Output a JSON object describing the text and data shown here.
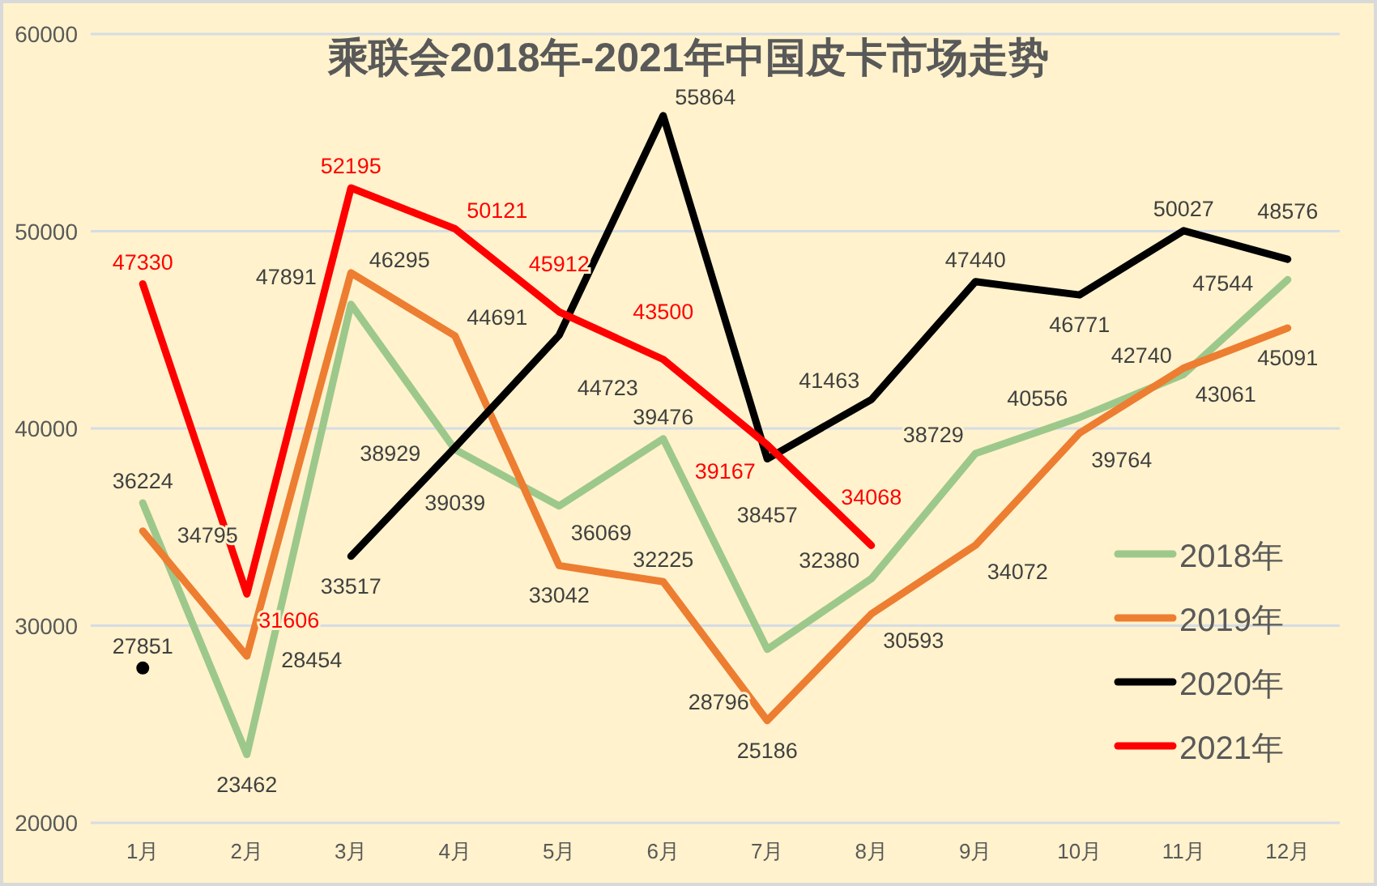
{
  "chart_data": {
    "type": "line",
    "title": "乘联会2018年-2021年中国皮卡市场走势",
    "categories": [
      "1月",
      "2月",
      "3月",
      "4月",
      "5月",
      "6月",
      "7月",
      "8月",
      "9月",
      "10月",
      "11月",
      "12月"
    ],
    "series": [
      {
        "name": "2018年",
        "color": "#9dc88b",
        "values": [
          36224,
          23462,
          46295,
          38929,
          36069,
          39476,
          28796,
          32380,
          38729,
          40556,
          42740,
          47544
        ]
      },
      {
        "name": "2019年",
        "color": "#ed7d31",
        "values": [
          34795,
          28454,
          47891,
          44691,
          33042,
          32225,
          25186,
          30593,
          34072,
          39764,
          43061,
          45091
        ]
      },
      {
        "name": "2020年",
        "color": "#000000",
        "values": [
          27851,
          null,
          33517,
          39039,
          44723,
          55864,
          38457,
          41463,
          47440,
          46771,
          50027,
          48576
        ]
      },
      {
        "name": "2021年",
        "color": "#ff0000",
        "values": [
          47330,
          31606,
          52195,
          50121,
          45912,
          43500,
          39167,
          34068,
          null,
          null,
          null,
          null
        ]
      }
    ],
    "ylim": [
      20000,
      60000
    ],
    "yticks": [
      20000,
      30000,
      40000,
      50000,
      60000
    ],
    "grid": "y",
    "legend": "right",
    "data_labels": true
  }
}
